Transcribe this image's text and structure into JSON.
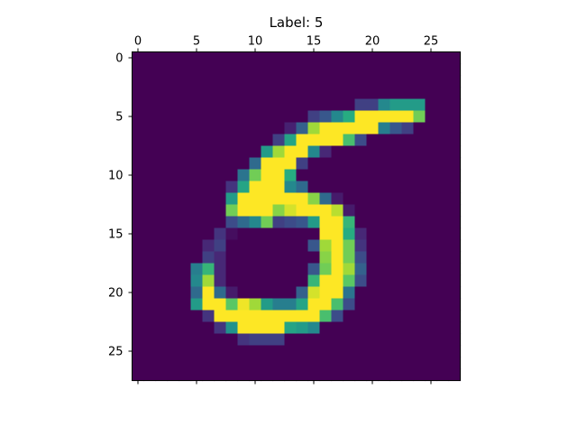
{
  "chart_data": {
    "type": "heatmap",
    "title": "Label: 5",
    "xlabel": "",
    "ylabel": "",
    "colormap": "viridis",
    "value_range": [
      0,
      255
    ],
    "rows": 28,
    "cols": 28,
    "x_ticks": [
      "0",
      "5",
      "10",
      "15",
      "20",
      "25"
    ],
    "y_ticks": [
      "0",
      "5",
      "10",
      "15",
      "20",
      "25"
    ],
    "x_axis_position": "top",
    "grid": false,
    "legend": "none",
    "pixels": [
      [
        0,
        0,
        0,
        0,
        0,
        0,
        0,
        0,
        0,
        0,
        0,
        0,
        0,
        0,
        0,
        0,
        0,
        0,
        0,
        0,
        0,
        0,
        0,
        0,
        0,
        0,
        0,
        0
      ],
      [
        0,
        0,
        0,
        0,
        0,
        0,
        0,
        0,
        0,
        0,
        0,
        0,
        0,
        0,
        0,
        0,
        0,
        0,
        0,
        0,
        0,
        0,
        0,
        0,
        0,
        0,
        0,
        0
      ],
      [
        0,
        0,
        0,
        0,
        0,
        0,
        0,
        0,
        0,
        0,
        0,
        0,
        0,
        0,
        0,
        0,
        0,
        0,
        0,
        0,
        0,
        0,
        0,
        0,
        0,
        0,
        0,
        0
      ],
      [
        0,
        0,
        0,
        0,
        0,
        0,
        0,
        0,
        0,
        0,
        0,
        0,
        0,
        0,
        0,
        0,
        0,
        0,
        0,
        0,
        0,
        0,
        0,
        0,
        0,
        0,
        0,
        0
      ],
      [
        0,
        0,
        0,
        0,
        0,
        0,
        0,
        0,
        0,
        0,
        0,
        0,
        0,
        0,
        0,
        0,
        0,
        0,
        0,
        50,
        50,
        120,
        140,
        140,
        140,
        0,
        0,
        0
      ],
      [
        0,
        0,
        0,
        0,
        0,
        0,
        0,
        0,
        0,
        0,
        0,
        0,
        0,
        0,
        0,
        50,
        70,
        120,
        160,
        255,
        255,
        255,
        255,
        255,
        200,
        0,
        0,
        0
      ],
      [
        0,
        0,
        0,
        0,
        0,
        0,
        0,
        0,
        0,
        0,
        0,
        0,
        0,
        25,
        80,
        220,
        255,
        255,
        255,
        255,
        255,
        110,
        70,
        50,
        0,
        0,
        0,
        0
      ],
      [
        0,
        0,
        0,
        0,
        0,
        0,
        0,
        0,
        0,
        0,
        0,
        0,
        50,
        150,
        255,
        255,
        255,
        255,
        180,
        60,
        0,
        0,
        0,
        0,
        0,
        0,
        0,
        0
      ],
      [
        0,
        0,
        0,
        0,
        0,
        0,
        0,
        0,
        0,
        0,
        0,
        140,
        220,
        255,
        255,
        120,
        30,
        0,
        0,
        0,
        0,
        0,
        0,
        0,
        0,
        0,
        0,
        0
      ],
      [
        0,
        0,
        0,
        0,
        0,
        0,
        0,
        0,
        0,
        0,
        90,
        255,
        255,
        255,
        50,
        0,
        0,
        0,
        0,
        0,
        0,
        0,
        0,
        0,
        0,
        0,
        0,
        0
      ],
      [
        0,
        0,
        0,
        0,
        0,
        0,
        0,
        0,
        0,
        100,
        200,
        255,
        255,
        160,
        0,
        0,
        0,
        0,
        0,
        0,
        0,
        0,
        0,
        0,
        0,
        0,
        0,
        0
      ],
      [
        0,
        0,
        0,
        0,
        0,
        0,
        0,
        0,
        40,
        150,
        255,
        255,
        255,
        120,
        90,
        0,
        0,
        0,
        0,
        0,
        0,
        0,
        0,
        0,
        0,
        0,
        0,
        0
      ],
      [
        0,
        0,
        0,
        0,
        0,
        0,
        0,
        0,
        140,
        255,
        255,
        255,
        255,
        255,
        255,
        210,
        90,
        20,
        0,
        0,
        0,
        0,
        0,
        0,
        0,
        0,
        0,
        0
      ],
      [
        0,
        0,
        0,
        0,
        0,
        0,
        0,
        0,
        200,
        255,
        255,
        255,
        210,
        240,
        255,
        255,
        255,
        230,
        20,
        0,
        0,
        0,
        0,
        0,
        0,
        0,
        0,
        0
      ],
      [
        0,
        0,
        0,
        0,
        0,
        0,
        0,
        0,
        60,
        90,
        120,
        200,
        50,
        60,
        70,
        140,
        255,
        255,
        170,
        0,
        0,
        0,
        0,
        0,
        0,
        0,
        0,
        0
      ],
      [
        0,
        0,
        0,
        0,
        0,
        0,
        0,
        40,
        10,
        0,
        0,
        0,
        0,
        0,
        0,
        0,
        255,
        255,
        160,
        30,
        0,
        0,
        0,
        0,
        0,
        0,
        0,
        0
      ],
      [
        0,
        0,
        0,
        0,
        0,
        0,
        30,
        50,
        0,
        0,
        0,
        0,
        0,
        0,
        0,
        70,
        220,
        255,
        200,
        40,
        0,
        0,
        0,
        0,
        0,
        0,
        0,
        0
      ],
      [
        0,
        0,
        0,
        0,
        0,
        0,
        50,
        30,
        0,
        0,
        0,
        0,
        0,
        0,
        0,
        0,
        210,
        255,
        200,
        60,
        0,
        0,
        0,
        0,
        0,
        0,
        0,
        0
      ],
      [
        0,
        0,
        0,
        0,
        0,
        110,
        170,
        30,
        0,
        0,
        0,
        0,
        0,
        0,
        0,
        70,
        200,
        255,
        220,
        80,
        0,
        0,
        0,
        0,
        0,
        0,
        0,
        0
      ],
      [
        0,
        0,
        0,
        0,
        0,
        120,
        220,
        30,
        0,
        0,
        0,
        0,
        0,
        0,
        0,
        170,
        255,
        255,
        190,
        60,
        0,
        0,
        0,
        0,
        0,
        0,
        0,
        0
      ],
      [
        0,
        0,
        0,
        0,
        0,
        90,
        255,
        90,
        20,
        0,
        0,
        0,
        0,
        0,
        80,
        240,
        255,
        255,
        100,
        0,
        0,
        0,
        0,
        0,
        0,
        0,
        0,
        0
      ],
      [
        0,
        0,
        0,
        0,
        0,
        140,
        255,
        255,
        190,
        250,
        220,
        140,
        110,
        110,
        150,
        255,
        255,
        180,
        60,
        0,
        0,
        0,
        0,
        0,
        0,
        0,
        0,
        0
      ],
      [
        0,
        0,
        0,
        0,
        0,
        0,
        40,
        255,
        255,
        255,
        255,
        255,
        255,
        255,
        255,
        255,
        180,
        60,
        0,
        0,
        0,
        0,
        0,
        0,
        0,
        0,
        0,
        0
      ],
      [
        0,
        0,
        0,
        0,
        0,
        0,
        0,
        40,
        130,
        255,
        255,
        255,
        255,
        150,
        140,
        120,
        0,
        0,
        0,
        0,
        0,
        0,
        0,
        0,
        0,
        0,
        0,
        0
      ],
      [
        0,
        0,
        0,
        0,
        0,
        0,
        0,
        0,
        0,
        40,
        50,
        50,
        50,
        0,
        0,
        0,
        0,
        0,
        0,
        0,
        0,
        0,
        0,
        0,
        0,
        0,
        0,
        0
      ],
      [
        0,
        0,
        0,
        0,
        0,
        0,
        0,
        0,
        0,
        0,
        0,
        0,
        0,
        0,
        0,
        0,
        0,
        0,
        0,
        0,
        0,
        0,
        0,
        0,
        0,
        0,
        0,
        0
      ],
      [
        0,
        0,
        0,
        0,
        0,
        0,
        0,
        0,
        0,
        0,
        0,
        0,
        0,
        0,
        0,
        0,
        0,
        0,
        0,
        0,
        0,
        0,
        0,
        0,
        0,
        0,
        0,
        0
      ],
      [
        0,
        0,
        0,
        0,
        0,
        0,
        0,
        0,
        0,
        0,
        0,
        0,
        0,
        0,
        0,
        0,
        0,
        0,
        0,
        0,
        0,
        0,
        0,
        0,
        0,
        0,
        0,
        0
      ]
    ]
  }
}
